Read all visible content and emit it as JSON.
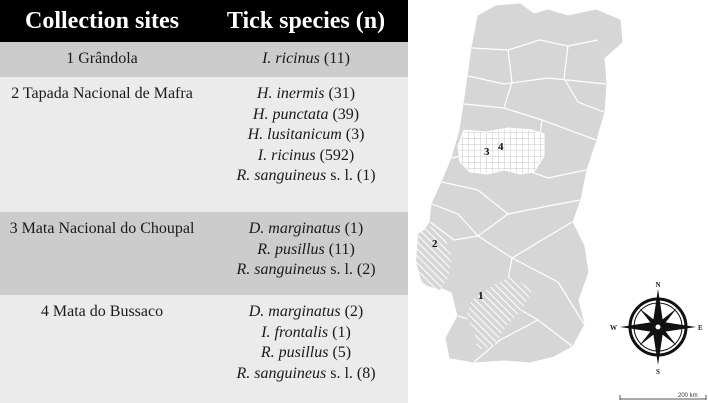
{
  "table": {
    "headers": {
      "sites": "Collection sites",
      "species": "Tick species (n)"
    },
    "rows": [
      {
        "site": "1 Grândola",
        "species": [
          {
            "name": "I. ricinus",
            "qual": "",
            "n": "(11)"
          }
        ]
      },
      {
        "site": "2 Tapada Nacional de Mafra",
        "species": [
          {
            "name": "H. inermis",
            "qual": "",
            "n": "(31)"
          },
          {
            "name": "H. punctata",
            "qual": "",
            "n": "(39)"
          },
          {
            "name": "H. lusitanicum",
            "qual": "",
            "n": "(3)"
          },
          {
            "name": "I. ricinus",
            "qual": "",
            "n": "(592)"
          },
          {
            "name": "R. sanguineus",
            "qual": "s. l.",
            "n": "(1)"
          }
        ]
      },
      {
        "site": "3 Mata Nacional do Choupal",
        "species": [
          {
            "name": "D. marginatus",
            "qual": "",
            "n": "(1)"
          },
          {
            "name": "R. pusillus",
            "qual": "",
            "n": "(11)"
          },
          {
            "name": "R. sanguineus",
            "qual": "s. l.",
            "n": "(2)"
          }
        ]
      },
      {
        "site": "4 Mata do Bussaco",
        "species": [
          {
            "name": "D. marginatus",
            "qual": "",
            "n": "(2)"
          },
          {
            "name": "I. frontalis",
            "qual": "",
            "n": "(1)"
          },
          {
            "name": "R. pusillus",
            "qual": "",
            "n": "(5)"
          },
          {
            "name": "R. sanguineus",
            "qual": "s. l.",
            "n": "(8)"
          }
        ]
      }
    ]
  },
  "map": {
    "site_labels": [
      "1",
      "2",
      "3",
      "4"
    ],
    "compass": {
      "n": "N",
      "e": "E",
      "s": "S",
      "w": "W"
    },
    "scale": "200 km",
    "colors": {
      "land": "#d6d6d6",
      "border": "#ffffff",
      "hatch": "#ffffff"
    }
  }
}
